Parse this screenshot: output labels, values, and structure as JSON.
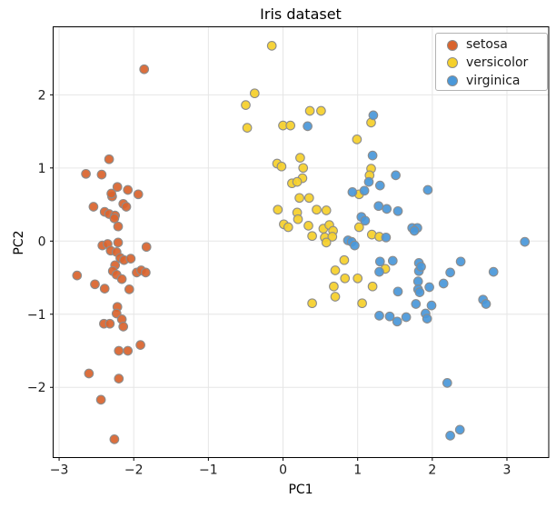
{
  "chart_data": {
    "type": "scatter",
    "title": "Iris dataset",
    "xlabel": "PC1",
    "ylabel": "PC2",
    "xlim": [
      -3.08,
      3.56
    ],
    "ylim": [
      -2.96,
      2.93
    ],
    "grid": true,
    "legend_position": "upper right",
    "x_ticks": {
      "values": [
        -3,
        -2,
        -1,
        0,
        1,
        2,
        3
      ],
      "labels": [
        "−3",
        "−2",
        "−1",
        "0",
        "1",
        "2",
        "3"
      ]
    },
    "y_ticks": {
      "values": [
        -2,
        -1,
        0,
        1,
        2
      ],
      "labels": [
        "−2",
        "−1",
        "0",
        "1",
        "2"
      ]
    },
    "colors": {
      "background": "#ffffff",
      "grid": "#e6e6e6",
      "spine": "#000000",
      "tick_label": "#1a1a1a",
      "marker_edge": "#8c8c8c"
    },
    "series": [
      {
        "name": "setosa",
        "color": "#D9642E",
        "points": [
          [
            -1.86,
            2.35
          ],
          [
            -2.33,
            1.12
          ],
          [
            -2.64,
            0.92
          ],
          [
            -2.43,
            0.91
          ],
          [
            -2.22,
            0.74
          ],
          [
            -2.08,
            0.7
          ],
          [
            -1.94,
            0.64
          ],
          [
            -2.29,
            0.61
          ],
          [
            -2.3,
            0.65
          ],
          [
            -2.54,
            0.47
          ],
          [
            -2.14,
            0.51
          ],
          [
            -2.1,
            0.47
          ],
          [
            -2.39,
            0.4
          ],
          [
            -2.33,
            0.37
          ],
          [
            -2.25,
            0.35
          ],
          [
            -2.26,
            0.31
          ],
          [
            -2.21,
            0.2
          ],
          [
            -2.42,
            -0.06
          ],
          [
            -2.21,
            -0.02
          ],
          [
            -2.35,
            -0.04
          ],
          [
            -1.83,
            -0.08
          ],
          [
            -2.31,
            -0.13
          ],
          [
            -2.23,
            -0.15
          ],
          [
            -2.18,
            -0.23
          ],
          [
            -2.13,
            -0.26
          ],
          [
            -2.04,
            -0.24
          ],
          [
            -2.25,
            -0.33
          ],
          [
            -2.76,
            -0.47
          ],
          [
            -2.28,
            -0.41
          ],
          [
            -2.23,
            -0.46
          ],
          [
            -2.16,
            -0.52
          ],
          [
            -1.96,
            -0.43
          ],
          [
            -1.9,
            -0.4
          ],
          [
            -1.84,
            -0.43
          ],
          [
            -2.52,
            -0.59
          ],
          [
            -2.39,
            -0.65
          ],
          [
            -2.06,
            -0.66
          ],
          [
            -2.22,
            -0.9
          ],
          [
            -2.23,
            -0.99
          ],
          [
            -2.4,
            -1.13
          ],
          [
            -2.32,
            -1.13
          ],
          [
            -2.16,
            -1.07
          ],
          [
            -2.14,
            -1.17
          ],
          [
            -1.91,
            -1.42
          ],
          [
            -2.2,
            -1.5
          ],
          [
            -2.08,
            -1.5
          ],
          [
            -2.6,
            -1.81
          ],
          [
            -2.2,
            -1.88
          ],
          [
            -2.44,
            -2.17
          ],
          [
            -2.26,
            -2.71
          ]
        ]
      },
      {
        "name": "versicolor",
        "color": "#F5D02B",
        "points": [
          [
            -0.15,
            2.67
          ],
          [
            -0.38,
            2.02
          ],
          [
            -0.5,
            1.86
          ],
          [
            -0.48,
            1.55
          ],
          [
            0.36,
            1.78
          ],
          [
            0.51,
            1.78
          ],
          [
            0.0,
            1.58
          ],
          [
            0.1,
            1.58
          ],
          [
            1.18,
            1.62
          ],
          [
            0.99,
            1.39
          ],
          [
            0.23,
            1.14
          ],
          [
            -0.08,
            1.06
          ],
          [
            -0.02,
            1.02
          ],
          [
            0.27,
            1.0
          ],
          [
            1.18,
            0.99
          ],
          [
            0.26,
            0.86
          ],
          [
            0.12,
            0.79
          ],
          [
            0.19,
            0.81
          ],
          [
            1.16,
            0.9
          ],
          [
            0.22,
            0.59
          ],
          [
            0.35,
            0.59
          ],
          [
            1.02,
            0.64
          ],
          [
            -0.07,
            0.43
          ],
          [
            0.19,
            0.39
          ],
          [
            0.45,
            0.43
          ],
          [
            0.58,
            0.42
          ],
          [
            0.2,
            0.3
          ],
          [
            0.01,
            0.23
          ],
          [
            0.07,
            0.19
          ],
          [
            0.34,
            0.21
          ],
          [
            1.02,
            0.19
          ],
          [
            0.54,
            0.17
          ],
          [
            0.62,
            0.22
          ],
          [
            0.67,
            0.14
          ],
          [
            0.39,
            0.07
          ],
          [
            0.56,
            0.05
          ],
          [
            0.66,
            0.06
          ],
          [
            0.58,
            -0.02
          ],
          [
            1.19,
            0.09
          ],
          [
            1.29,
            0.06
          ],
          [
            0.82,
            -0.26
          ],
          [
            0.7,
            -0.4
          ],
          [
            0.83,
            -0.51
          ],
          [
            1.0,
            -0.51
          ],
          [
            0.68,
            -0.62
          ],
          [
            1.2,
            -0.62
          ],
          [
            1.37,
            -0.38
          ],
          [
            0.39,
            -0.85
          ],
          [
            0.7,
            -0.76
          ],
          [
            1.06,
            -0.85
          ]
        ]
      },
      {
        "name": "virginica",
        "color": "#4A98D9",
        "points": [
          [
            0.33,
            1.57
          ],
          [
            1.21,
            1.72
          ],
          [
            1.2,
            1.17
          ],
          [
            1.15,
            0.81
          ],
          [
            1.51,
            0.9
          ],
          [
            0.93,
            0.67
          ],
          [
            1.09,
            0.69
          ],
          [
            1.3,
            0.76
          ],
          [
            1.94,
            0.7
          ],
          [
            1.28,
            0.48
          ],
          [
            1.39,
            0.44
          ],
          [
            1.54,
            0.41
          ],
          [
            1.05,
            0.33
          ],
          [
            1.1,
            0.28
          ],
          [
            1.73,
            0.18
          ],
          [
            1.8,
            0.18
          ],
          [
            1.76,
            0.14
          ],
          [
            1.38,
            0.05
          ],
          [
            0.87,
            0.01
          ],
          [
            0.92,
            -0.01
          ],
          [
            0.96,
            -0.06
          ],
          [
            3.24,
            -0.01
          ],
          [
            1.47,
            -0.27
          ],
          [
            1.3,
            -0.28
          ],
          [
            1.82,
            -0.3
          ],
          [
            1.29,
            -0.42
          ],
          [
            1.82,
            -0.41
          ],
          [
            2.38,
            -0.28
          ],
          [
            2.24,
            -0.43
          ],
          [
            2.82,
            -0.42
          ],
          [
            1.85,
            -0.35
          ],
          [
            2.15,
            -0.58
          ],
          [
            1.81,
            -0.55
          ],
          [
            1.81,
            -0.66
          ],
          [
            1.83,
            -0.7
          ],
          [
            1.54,
            -0.69
          ],
          [
            1.96,
            -0.63
          ],
          [
            1.78,
            -0.86
          ],
          [
            1.99,
            -0.88
          ],
          [
            2.68,
            -0.8
          ],
          [
            2.72,
            -0.86
          ],
          [
            1.43,
            -1.03
          ],
          [
            1.53,
            -1.1
          ],
          [
            1.65,
            -1.04
          ],
          [
            1.91,
            -0.99
          ],
          [
            1.93,
            -1.06
          ],
          [
            1.29,
            -1.02
          ],
          [
            2.2,
            -1.94
          ],
          [
            2.24,
            -2.66
          ],
          [
            2.37,
            -2.58
          ]
        ]
      }
    ]
  }
}
